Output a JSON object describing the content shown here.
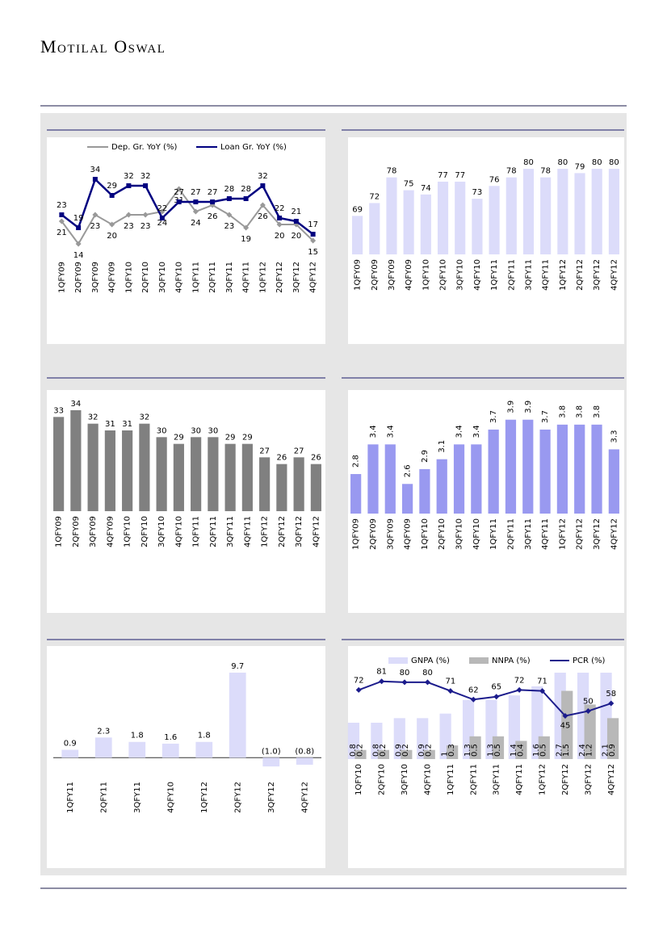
{
  "header": {
    "brand": "Motilal Oswal"
  },
  "chart_data": [
    {
      "type": "line",
      "legend": "top",
      "categories": [
        "1QFY09",
        "2QFY09",
        "3QFY09",
        "4QFY09",
        "1QFY10",
        "2QFY10",
        "3QFY10",
        "4QFY10",
        "1QFY11",
        "2QFY11",
        "3QFY11",
        "4QFY11",
        "1QFY12",
        "2QFY12",
        "3QFY12",
        "4QFY12"
      ],
      "series": [
        {
          "name": "Dep. Gr. YoY (%)",
          "color": "#999999",
          "values": [
            21,
            14,
            23,
            20,
            23,
            23,
            24,
            31,
            24,
            26,
            23,
            19,
            26,
            20,
            20,
            15
          ]
        },
        {
          "name": "Loan Gr. YoY (%)",
          "color": "#000080",
          "values": [
            23,
            19,
            34,
            29,
            32,
            32,
            22,
            27,
            27,
            27,
            28,
            28,
            32,
            22,
            21,
            17
          ]
        }
      ],
      "ylim": [
        10,
        45
      ]
    },
    {
      "type": "bar",
      "color": "#dcdcfa",
      "categories": [
        "1QFY09",
        "2QFY09",
        "3QFY09",
        "4QFY09",
        "1QFY10",
        "2QFY10",
        "3QFY10",
        "4QFY10",
        "1QFY11",
        "2QFY11",
        "3QFY11",
        "4QFY11",
        "1QFY12",
        "2QFY12",
        "3QFY12",
        "4QFY12"
      ],
      "values": [
        69,
        72,
        78,
        75,
        74,
        77,
        77,
        73,
        76,
        78,
        80,
        78,
        80,
        79,
        80,
        80
      ],
      "ylim": [
        60,
        87
      ]
    },
    {
      "type": "bar",
      "color": "#808080",
      "categories": [
        "1QFY09",
        "2QFY09",
        "3QFY09",
        "4QFY09",
        "1QFY10",
        "2QFY10",
        "3QFY10",
        "4QFY10",
        "1QFY11",
        "2QFY11",
        "3QFY11",
        "4QFY11",
        "1QFY12",
        "2QFY12",
        "3QFY12",
        "4QFY12"
      ],
      "values": [
        33,
        34,
        32,
        31,
        31,
        32,
        30,
        29,
        30,
        30,
        29,
        29,
        27,
        26,
        27,
        26
      ],
      "ylim": [
        19,
        37
      ]
    },
    {
      "type": "bar",
      "color": "#9999f0",
      "categories": [
        "1QFY09",
        "2QFY09",
        "3QFY09",
        "4QFY09",
        "1QFY10",
        "2QFY10",
        "3QFY10",
        "4QFY10",
        "1QFY11",
        "2QFY11",
        "3QFY11",
        "4QFY11",
        "1QFY12",
        "2QFY12",
        "3QFY12",
        "4QFY12"
      ],
      "values": [
        2.8,
        3.4,
        3.4,
        2.6,
        2.9,
        3.1,
        3.4,
        3.4,
        3.7,
        3.9,
        3.9,
        3.7,
        3.8,
        3.8,
        3.8,
        3.3
      ],
      "ylim": [
        2.0,
        4.5
      ]
    },
    {
      "type": "bar",
      "color": "#dcdcfa",
      "categories": [
        "1QFY11",
        "2QFY11",
        "3QFY11",
        "4QFY10",
        "1QFY12",
        "2QFY12",
        "3QFY12",
        "4QFY12"
      ],
      "values": [
        0.9,
        2.3,
        1.8,
        1.6,
        1.8,
        9.7,
        -1.0,
        -0.8
      ],
      "value_labels": [
        "0.9",
        "2.3",
        "1.8",
        "1.6",
        "1.8",
        "9.7",
        "(1.0)",
        "(0.8)"
      ],
      "ylim": [
        -2,
        12
      ]
    },
    {
      "type": "combo",
      "legend": "top",
      "categories": [
        "1QFY10",
        "2QFY10",
        "3QFY10",
        "4QFY10",
        "1QFY11",
        "2QFY11",
        "3QFY11",
        "4QFY11",
        "1QFY12",
        "2QFY12",
        "3QFY12",
        "4QFY12"
      ],
      "series": [
        {
          "name": "GNPA (%)",
          "color": "#dcdcfa",
          "values": [
            0.8,
            0.8,
            0.9,
            0.9,
            1.0,
            1.3,
            1.3,
            1.4,
            1.6,
            2.7,
            2.4,
            2.1
          ]
        },
        {
          "name": "NNPA (%)",
          "color": "#b8b8b8",
          "values": [
            0.2,
            0.2,
            0.2,
            0.2,
            0.3,
            0.5,
            0.5,
            0.4,
            0.5,
            1.5,
            1.2,
            0.9
          ]
        },
        {
          "name": "PCR (%)",
          "color": "#1c1c8c",
          "axis": "y2",
          "values": [
            72,
            81,
            80,
            80,
            71,
            62,
            65,
            72,
            71,
            45,
            50,
            58
          ]
        }
      ],
      "ylim": [
        0,
        1.9
      ],
      "y2lim": [
        0,
        90
      ]
    }
  ]
}
